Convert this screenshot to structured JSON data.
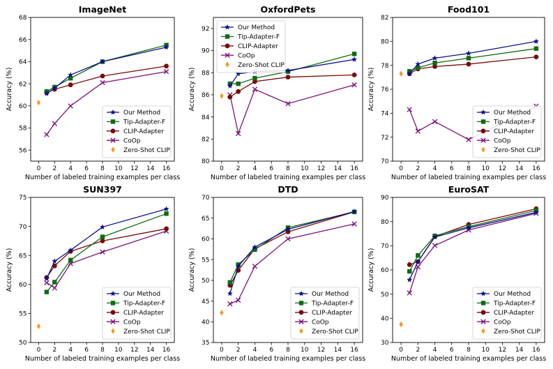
{
  "figure": {
    "xlabel": "Number of labeled training examples per class",
    "ylabel": "Accuracy (%)",
    "xticks": [
      0,
      2,
      4,
      6,
      8,
      10,
      12,
      14,
      16
    ]
  },
  "methods": [
    {
      "key": "ours",
      "name": "Our Method",
      "color": "#0d0f8a",
      "marker": "star"
    },
    {
      "key": "tip",
      "name": "Tip-Adapter-F",
      "color": "#0f6b12",
      "marker": "square"
    },
    {
      "key": "clip",
      "name": "CLIP-Adapter",
      "color": "#7a0a0a",
      "marker": "circle"
    },
    {
      "key": "coop",
      "name": "CoOp",
      "color": "#7b127b",
      "marker": "x"
    },
    {
      "key": "zs",
      "name": "Zero-Shot CLIP",
      "color": "#f59a22",
      "marker": "diamond"
    }
  ],
  "chart_data": [
    {
      "type": "line",
      "title": "ImageNet",
      "ylim": [
        55,
        68
      ],
      "yticks": [
        56,
        58,
        60,
        62,
        64,
        66,
        68
      ],
      "x": [
        1,
        2,
        4,
        8,
        16
      ],
      "series": [
        {
          "name": "Our Method",
          "values": [
            61.1,
            61.6,
            62.8,
            64.0,
            65.3
          ]
        },
        {
          "name": "Tip-Adapter-F",
          "values": [
            61.3,
            61.7,
            62.5,
            64.0,
            65.5
          ]
        },
        {
          "name": "CLIP-Adapter",
          "values": [
            61.2,
            61.5,
            61.9,
            62.7,
            63.6
          ]
        },
        {
          "name": "CoOp",
          "values": [
            57.4,
            58.4,
            60.0,
            62.1,
            63.1
          ]
        }
      ],
      "zero_shot": {
        "x": 0,
        "value": 60.3
      },
      "legend": "lower-right"
    },
    {
      "type": "line",
      "title": "OxfordPets",
      "ylim": [
        80,
        93
      ],
      "yticks": [
        80,
        82,
        84,
        86,
        88,
        90,
        92
      ],
      "x": [
        1,
        2,
        4,
        8,
        16
      ],
      "series": [
        {
          "name": "Our Method",
          "values": [
            86.8,
            87.9,
            88.1,
            88.2,
            89.2
          ]
        },
        {
          "name": "Tip-Adapter-F",
          "values": [
            87.0,
            87.0,
            87.5,
            88.1,
            89.7
          ]
        },
        {
          "name": "CLIP-Adapter",
          "values": [
            85.8,
            86.3,
            87.2,
            87.6,
            87.8
          ]
        },
        {
          "name": "CoOp",
          "values": [
            86.0,
            82.5,
            86.5,
            85.2,
            86.9
          ]
        }
      ],
      "zero_shot": {
        "x": 0,
        "value": 85.9
      },
      "legend": "upper-left"
    },
    {
      "type": "line",
      "title": "Food101",
      "ylim": [
        70,
        82
      ],
      "yticks": [
        70,
        72,
        74,
        76,
        78,
        80,
        82
      ],
      "x": [
        1,
        2,
        4,
        8,
        16
      ],
      "series": [
        {
          "name": "Our Method",
          "values": [
            77.3,
            78.1,
            78.6,
            79.0,
            80.0
          ]
        },
        {
          "name": "Tip-Adapter-F",
          "values": [
            77.5,
            77.8,
            78.2,
            78.6,
            79.4
          ]
        },
        {
          "name": "CLIP-Adapter",
          "values": [
            77.3,
            77.7,
            77.9,
            78.1,
            78.7
          ]
        },
        {
          "name": "CoOp",
          "values": [
            74.3,
            72.5,
            73.3,
            71.8,
            74.6
          ]
        }
      ],
      "zero_shot": {
        "x": 0,
        "value": 77.3
      },
      "legend": "lower-right"
    },
    {
      "type": "line",
      "title": "SUN397",
      "ylim": [
        50,
        75
      ],
      "yticks": [
        50,
        55,
        60,
        65,
        70,
        75
      ],
      "x": [
        1,
        2,
        4,
        8,
        16
      ],
      "series": [
        {
          "name": "Our Method",
          "values": [
            61.0,
            64.0,
            65.9,
            69.9,
            73.0
          ]
        },
        {
          "name": "Tip-Adapter-F",
          "values": [
            58.7,
            60.4,
            64.2,
            68.2,
            72.2
          ]
        },
        {
          "name": "CLIP-Adapter",
          "values": [
            61.2,
            63.2,
            65.7,
            67.5,
            69.6
          ]
        },
        {
          "name": "CoOp",
          "values": [
            60.3,
            59.4,
            63.6,
            65.6,
            69.2
          ]
        }
      ],
      "zero_shot": {
        "x": 0,
        "value": 52.8
      },
      "legend": "lower-right"
    },
    {
      "type": "line",
      "title": "DTD",
      "ylim": [
        35,
        70
      ],
      "yticks": [
        35,
        40,
        45,
        50,
        55,
        60,
        65,
        70
      ],
      "x": [
        1,
        2,
        4,
        8,
        16
      ],
      "series": [
        {
          "name": "Our Method",
          "values": [
            46.8,
            53.4,
            58.0,
            62.3,
            66.6
          ]
        },
        {
          "name": "Tip-Adapter-F",
          "values": [
            49.5,
            53.8,
            57.4,
            62.7,
            66.5
          ]
        },
        {
          "name": "CLIP-Adapter",
          "values": [
            48.8,
            52.4,
            57.6,
            61.7,
            66.5
          ]
        },
        {
          "name": "CoOp",
          "values": [
            44.3,
            45.2,
            53.4,
            60.0,
            63.6
          ]
        }
      ],
      "zero_shot": {
        "x": 0,
        "value": 42.2
      },
      "legend": "lower-right"
    },
    {
      "type": "line",
      "title": "EuroSAT",
      "ylim": [
        30,
        90
      ],
      "yticks": [
        30,
        40,
        50,
        60,
        70,
        80,
        90
      ],
      "x": [
        1,
        2,
        4,
        8,
        16
      ],
      "series": [
        {
          "name": "Our Method",
          "values": [
            55.9,
            63.5,
            73.6,
            77.4,
            83.8
          ]
        },
        {
          "name": "Tip-Adapter-F",
          "values": [
            59.4,
            66.0,
            74.1,
            77.9,
            84.6
          ]
        },
        {
          "name": "CLIP-Adapter",
          "values": [
            62.2,
            63.4,
            73.8,
            78.8,
            85.3
          ]
        },
        {
          "name": "CoOp",
          "values": [
            50.5,
            61.3,
            70.1,
            76.5,
            83.4
          ]
        }
      ],
      "zero_shot": {
        "x": 0,
        "value": 37.5
      },
      "legend": "lower-right"
    }
  ]
}
